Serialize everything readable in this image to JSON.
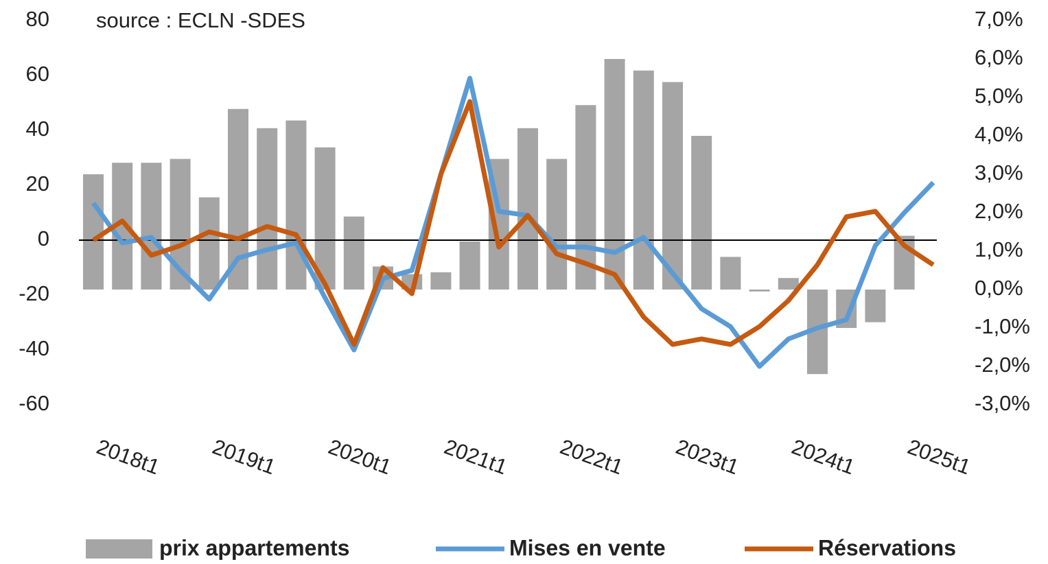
{
  "chart_data": {
    "type": "bar_line",
    "annotation": "source : ECLN -SDES",
    "categories": [
      "2018t1",
      null,
      null,
      null,
      "2019t1",
      null,
      null,
      null,
      "2020t1",
      null,
      null,
      null,
      "2021t1",
      null,
      null,
      null,
      "2022t1",
      null,
      null,
      null,
      "2023t1",
      null,
      null,
      null,
      "2024t1",
      null,
      null,
      null,
      "2025t1",
      null
    ],
    "series": [
      {
        "name": "prix appartements",
        "type": "bar",
        "axis": "y2",
        "color": "#a5a5a5",
        "values": [
          3.0,
          3.3,
          3.3,
          3.4,
          2.4,
          4.7,
          4.2,
          4.4,
          3.7,
          1.9,
          0.6,
          0.4,
          0.45,
          1.25,
          3.4,
          4.2,
          3.4,
          4.8,
          6.0,
          5.7,
          5.4,
          4.0,
          0.85,
          -0.05,
          0.3,
          -2.2,
          -1.0,
          -0.85,
          1.4,
          null
        ]
      },
      {
        "name": "Mises en vente",
        "type": "line",
        "color": "#5b9bd5",
        "values": [
          13.5,
          -1,
          1,
          -11,
          -21.5,
          -6.5,
          -3.5,
          -1,
          -21,
          -40,
          -14,
          -11,
          24,
          59,
          10.5,
          9,
          -2.5,
          -2.5,
          -4.5,
          1,
          -12,
          -25,
          -31.5,
          -46,
          -36,
          -32,
          -29,
          -2,
          10,
          21
        ]
      },
      {
        "name": "Réservations",
        "type": "line",
        "color": "#c55a11",
        "values": [
          0,
          7,
          -5.5,
          -2,
          3,
          0.5,
          5,
          2,
          -16,
          -38,
          -10,
          -19.5,
          24,
          50.5,
          -2.5,
          9,
          -5,
          -8.5,
          -12.5,
          -28,
          -38,
          -36,
          -38,
          -31.5,
          -22,
          -9,
          8.5,
          10.5,
          -2,
          -9
        ]
      }
    ],
    "ylim": [
      -60,
      80
    ],
    "yticks": [
      -60,
      -40,
      -20,
      0,
      20,
      40,
      60,
      80
    ],
    "y2lim": [
      -3,
      7
    ],
    "y2ticks": [
      {
        "value": -3,
        "label": "-3,0%"
      },
      {
        "value": -2,
        "label": "-2,0%"
      },
      {
        "value": -1,
        "label": "-1,0%"
      },
      {
        "value": 0,
        "label": "0,0%"
      },
      {
        "value": 1,
        "label": "1,0%"
      },
      {
        "value": 2,
        "label": "2,0%"
      },
      {
        "value": 3,
        "label": "3,0%"
      },
      {
        "value": 4,
        "label": "4,0%"
      },
      {
        "value": 5,
        "label": "5,0%"
      },
      {
        "value": 6,
        "label": "6,0%"
      },
      {
        "value": 7,
        "label": "7,0%"
      }
    ],
    "zero_line": true,
    "legend": "bottom"
  }
}
